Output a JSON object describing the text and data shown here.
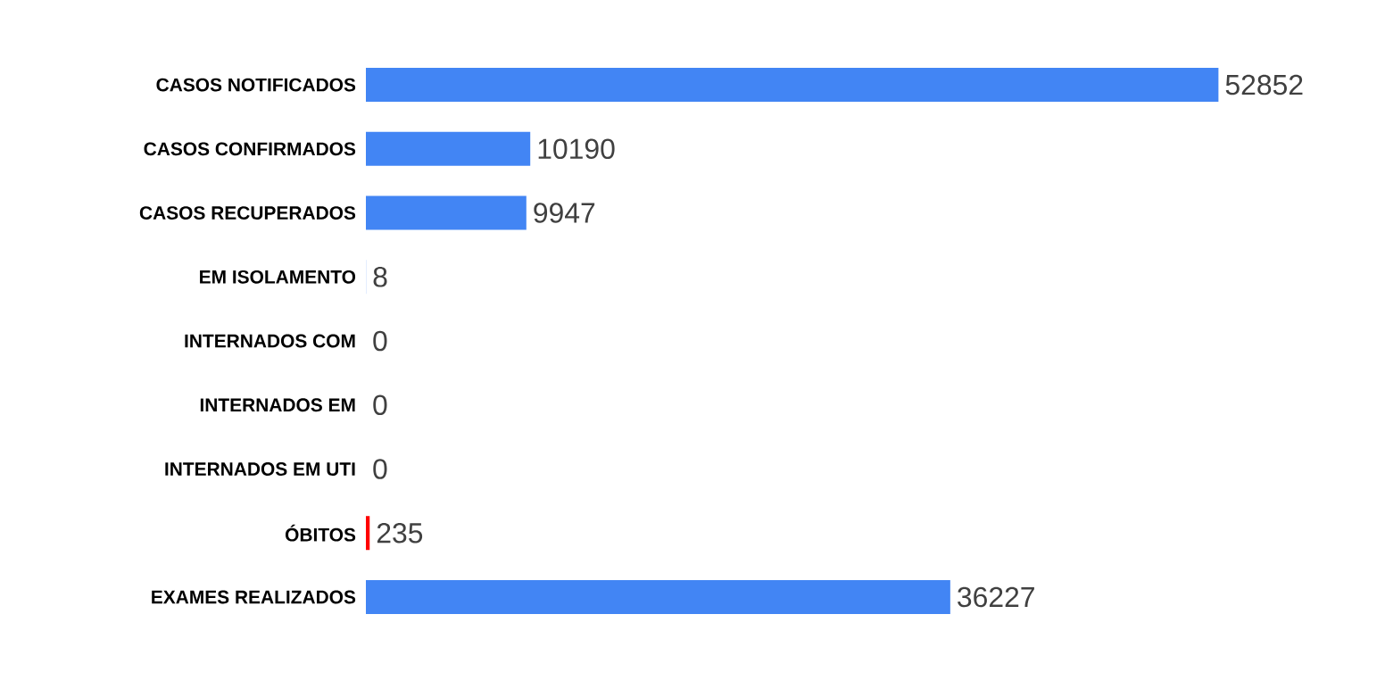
{
  "chart_data": {
    "type": "bar",
    "orientation": "horizontal",
    "categories": [
      "CASOS NOTIFICADOS",
      "CASOS CONFIRMADOS",
      "CASOS RECUPERADOS",
      "EM ISOLAMENTO",
      "INTERNADOS COM",
      "INTERNADOS EM",
      "INTERNADOS EM UTI",
      "ÓBITOS",
      "EXAMES REALIZADOS"
    ],
    "values": [
      52852,
      10190,
      9947,
      8,
      0,
      0,
      0,
      235,
      36227
    ],
    "colors": [
      "#4285f4",
      "#4285f4",
      "#4285f4",
      "#4285f4",
      "#4285f4",
      "#4285f4",
      "#4285f4",
      "#ff0000",
      "#4285f4"
    ],
    "data_labels": true,
    "tick_labels": "y"
  }
}
